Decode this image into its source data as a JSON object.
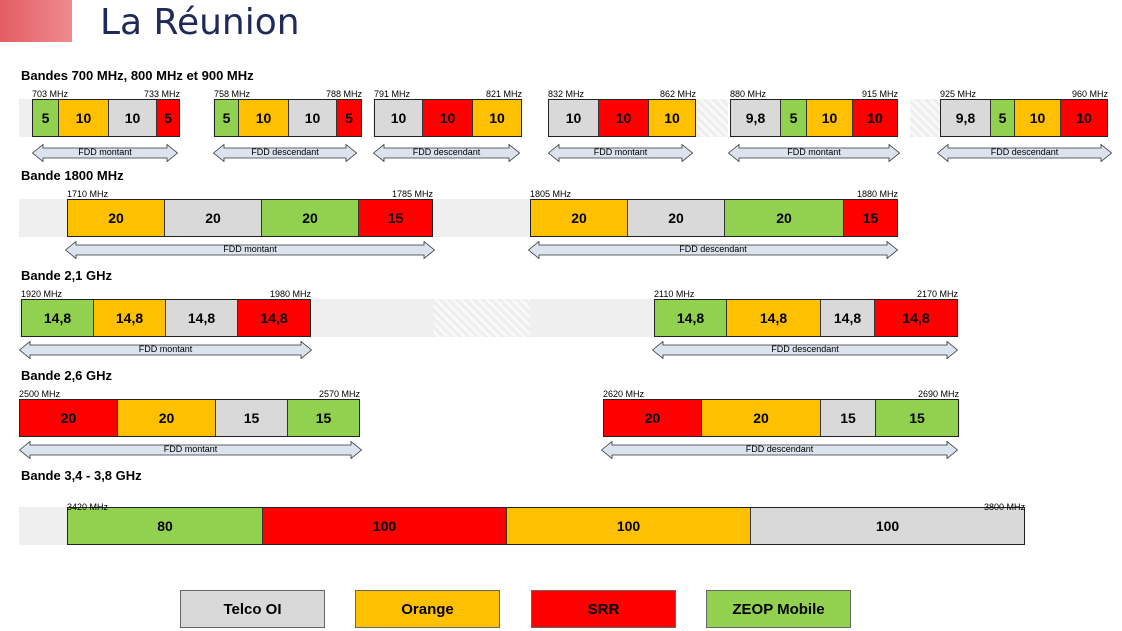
{
  "title": "La Réunion",
  "colors": {
    "title_bar": "#e25e63",
    "telco": "#d9d9d9",
    "orange": "#ffc000",
    "srr": "#ff0000",
    "zeop": "#92d050",
    "track": "#efefef",
    "arrow_fill": "#dbe3ef"
  },
  "sections": [
    {
      "title": "Bandes 700 MHz, 800 MHz et 900 MHz",
      "groups": [
        {
          "start": "703 MHz",
          "end": "733 MHz",
          "arrow": "FDD montant",
          "segments": [
            {
              "value": "5",
              "op": "zeop"
            },
            {
              "value": "10",
              "op": "orange"
            },
            {
              "value": "10",
              "op": "telco"
            },
            {
              "value": "5",
              "op": "srr"
            }
          ]
        },
        {
          "start": "758 MHz",
          "end": "788 MHz",
          "arrow": "FDD descendant",
          "segments": [
            {
              "value": "5",
              "op": "zeop"
            },
            {
              "value": "10",
              "op": "orange"
            },
            {
              "value": "10",
              "op": "telco"
            },
            {
              "value": "5",
              "op": "srr"
            }
          ]
        },
        {
          "start": "791 MHz",
          "end": "821 MHz",
          "arrow": "FDD descendant",
          "segments": [
            {
              "value": "10",
              "op": "telco"
            },
            {
              "value": "10",
              "op": "srr"
            },
            {
              "value": "10",
              "op": "orange"
            }
          ]
        },
        {
          "start": "832 MHz",
          "end": "862 MHz",
          "arrow": "FDD montant",
          "segments": [
            {
              "value": "10",
              "op": "telco"
            },
            {
              "value": "10",
              "op": "srr"
            },
            {
              "value": "10",
              "op": "orange"
            }
          ]
        },
        {
          "start": "880 MHz",
          "end": "915 MHz",
          "arrow": "FDD montant",
          "segments": [
            {
              "value": "9,8",
              "op": "telco"
            },
            {
              "value": "5",
              "op": "zeop"
            },
            {
              "value": "10",
              "op": "orange"
            },
            {
              "value": "10",
              "op": "srr"
            }
          ]
        },
        {
          "start": "925 MHz",
          "end": "960 MHz",
          "arrow": "FDD descendant",
          "segments": [
            {
              "value": "9,8",
              "op": "telco"
            },
            {
              "value": "5",
              "op": "zeop"
            },
            {
              "value": "10",
              "op": "orange"
            },
            {
              "value": "10",
              "op": "srr"
            }
          ]
        }
      ]
    },
    {
      "title": "Bande 1800 MHz",
      "groups": [
        {
          "start": "1710 MHz",
          "end": "1785 MHz",
          "arrow": "FDD montant",
          "segments": [
            {
              "value": "20",
              "op": "orange"
            },
            {
              "value": "20",
              "op": "telco"
            },
            {
              "value": "20",
              "op": "zeop"
            },
            {
              "value": "15",
              "op": "srr"
            }
          ]
        },
        {
          "start": "1805 MHz",
          "end": "1880 MHz",
          "arrow": "FDD descendant",
          "segments": [
            {
              "value": "20",
              "op": "orange"
            },
            {
              "value": "20",
              "op": "telco"
            },
            {
              "value": "20",
              "op": "zeop"
            },
            {
              "value": "15",
              "op": "srr"
            }
          ]
        }
      ]
    },
    {
      "title": "Bande 2,1 GHz",
      "groups": [
        {
          "start": "1920 MHz",
          "end": "1980 MHz",
          "arrow": "FDD montant",
          "segments": [
            {
              "value": "14,8",
              "op": "zeop"
            },
            {
              "value": "14,8",
              "op": "orange"
            },
            {
              "value": "14,8",
              "op": "telco"
            },
            {
              "value": "14,8",
              "op": "srr"
            }
          ]
        },
        {
          "start": "2110 MHz",
          "end": "2170 MHz",
          "arrow": "FDD descendant",
          "segments": [
            {
              "value": "14,8",
              "op": "zeop"
            },
            {
              "value": "14,8",
              "op": "orange"
            },
            {
              "value": "14,8",
              "op": "telco"
            },
            {
              "value": "14,8",
              "op": "srr"
            }
          ]
        }
      ]
    },
    {
      "title": "Bande 2,6 GHz",
      "groups": [
        {
          "start": "2500 MHz",
          "end": "2570 MHz",
          "arrow": "FDD montant",
          "segments": [
            {
              "value": "20",
              "op": "srr"
            },
            {
              "value": "20",
              "op": "orange"
            },
            {
              "value": "15",
              "op": "telco"
            },
            {
              "value": "15",
              "op": "zeop"
            }
          ]
        },
        {
          "start": "2620 MHz",
          "end": "2690 MHz",
          "arrow": "FDD descendant",
          "segments": [
            {
              "value": "20",
              "op": "srr"
            },
            {
              "value": "20",
              "op": "orange"
            },
            {
              "value": "15",
              "op": "telco"
            },
            {
              "value": "15",
              "op": "zeop"
            }
          ]
        }
      ]
    },
    {
      "title": "Bande 3,4 - 3,8 GHz",
      "groups": [
        {
          "start": "3420 MHz",
          "end": "3800 MHz",
          "arrow": "",
          "segments": [
            {
              "value": "80",
              "op": "zeop"
            },
            {
              "value": "100",
              "op": "srr"
            },
            {
              "value": "100",
              "op": "orange"
            },
            {
              "value": "100",
              "op": "telco"
            }
          ]
        }
      ]
    }
  ],
  "legend": [
    {
      "label": "Telco OI",
      "op": "telco"
    },
    {
      "label": "Orange",
      "op": "orange"
    },
    {
      "label": "SRR",
      "op": "srr"
    },
    {
      "label": "ZEOP Mobile",
      "op": "zeop"
    }
  ]
}
